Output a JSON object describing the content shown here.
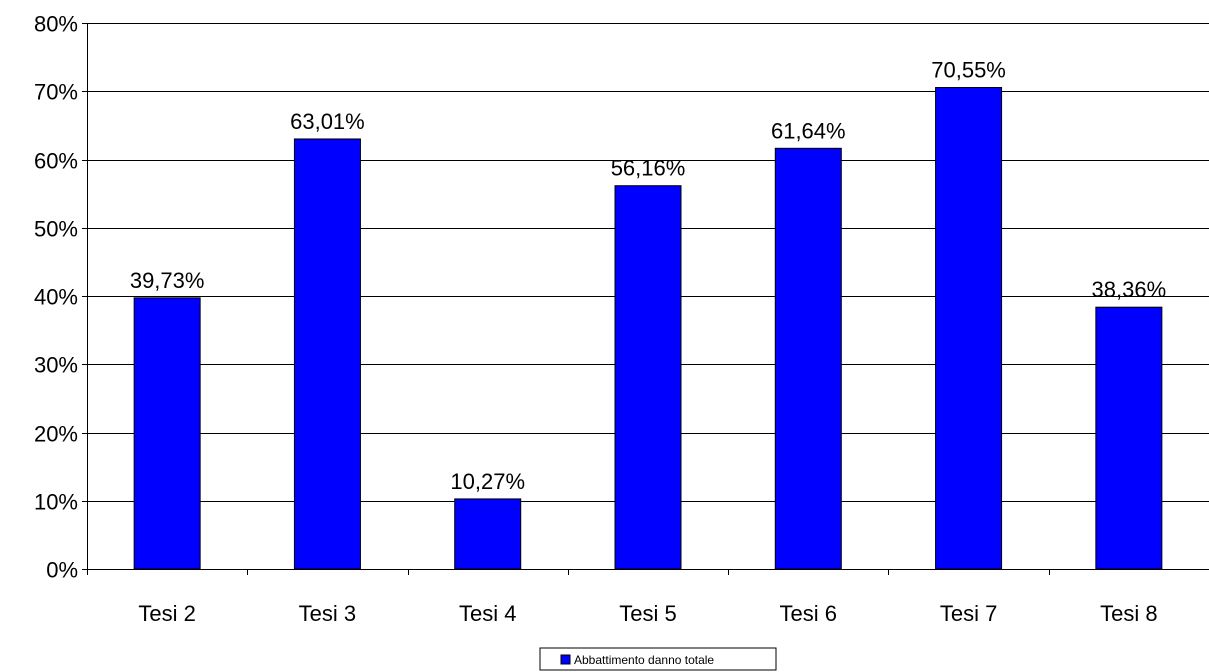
{
  "chart_data": {
    "type": "bar",
    "title": "",
    "xlabel": "",
    "ylabel": "",
    "categories": [
      "Tesi 2",
      "Tesi 3",
      "Tesi 4",
      "Tesi 5",
      "Tesi 6",
      "Tesi 7",
      "Tesi 8"
    ],
    "series": [
      {
        "name": "Abbattimento danno totale",
        "values": [
          39.73,
          63.01,
          10.27,
          56.16,
          61.64,
          70.55,
          38.36
        ],
        "labels": [
          "39,73%",
          "63,01%",
          "10,27%",
          "56,16%",
          "61,64%",
          "70,55%",
          "38,36%"
        ],
        "color": "#0000FF"
      }
    ],
    "ylim": [
      0,
      80
    ],
    "yticks": [
      0,
      10,
      20,
      30,
      40,
      50,
      60,
      70,
      80
    ],
    "ytick_labels": [
      "0%",
      "10%",
      "20%",
      "30%",
      "40%",
      "50%",
      "60%",
      "70%",
      "80%"
    ],
    "grid": true,
    "legend_position": "bottom-center"
  }
}
